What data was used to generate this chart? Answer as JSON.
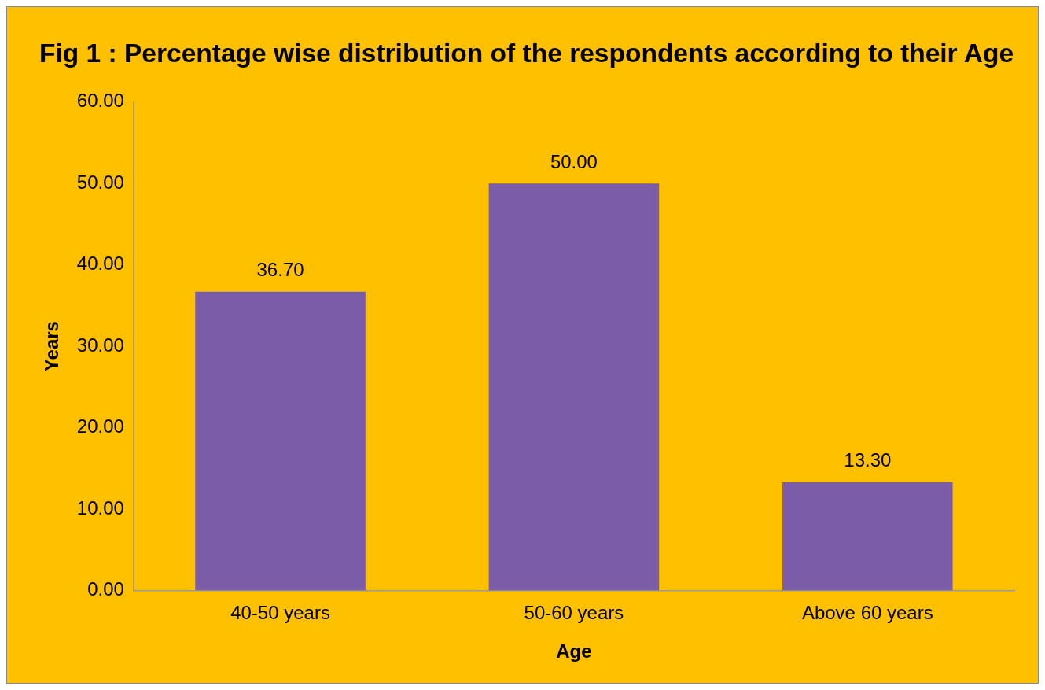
{
  "chart_data": {
    "type": "bar",
    "title": "Fig 1 : Percentage wise distribution of the respondents according to their Age",
    "xlabel": "Age",
    "ylabel": "Years",
    "categories": [
      "40-50 years",
      "50-60 years",
      "Above 60 years"
    ],
    "values": [
      36.7,
      50,
      13.3
    ],
    "color": "#7b5ca8",
    "value_labels": [
      "36.70",
      "50.00",
      "13.30"
    ],
    "ylim": [
      0,
      60
    ],
    "yticks": [
      {
        "value": 0,
        "label": "0.00"
      },
      {
        "value": 10,
        "label": "10.00"
      },
      {
        "value": 20,
        "label": "20.00"
      },
      {
        "value": 30,
        "label": "30.00"
      },
      {
        "value": 40,
        "label": "40.00"
      },
      {
        "value": 50,
        "label": "50.00"
      },
      {
        "value": 60,
        "label": "60.00"
      }
    ],
    "grid": false,
    "legend": false
  }
}
